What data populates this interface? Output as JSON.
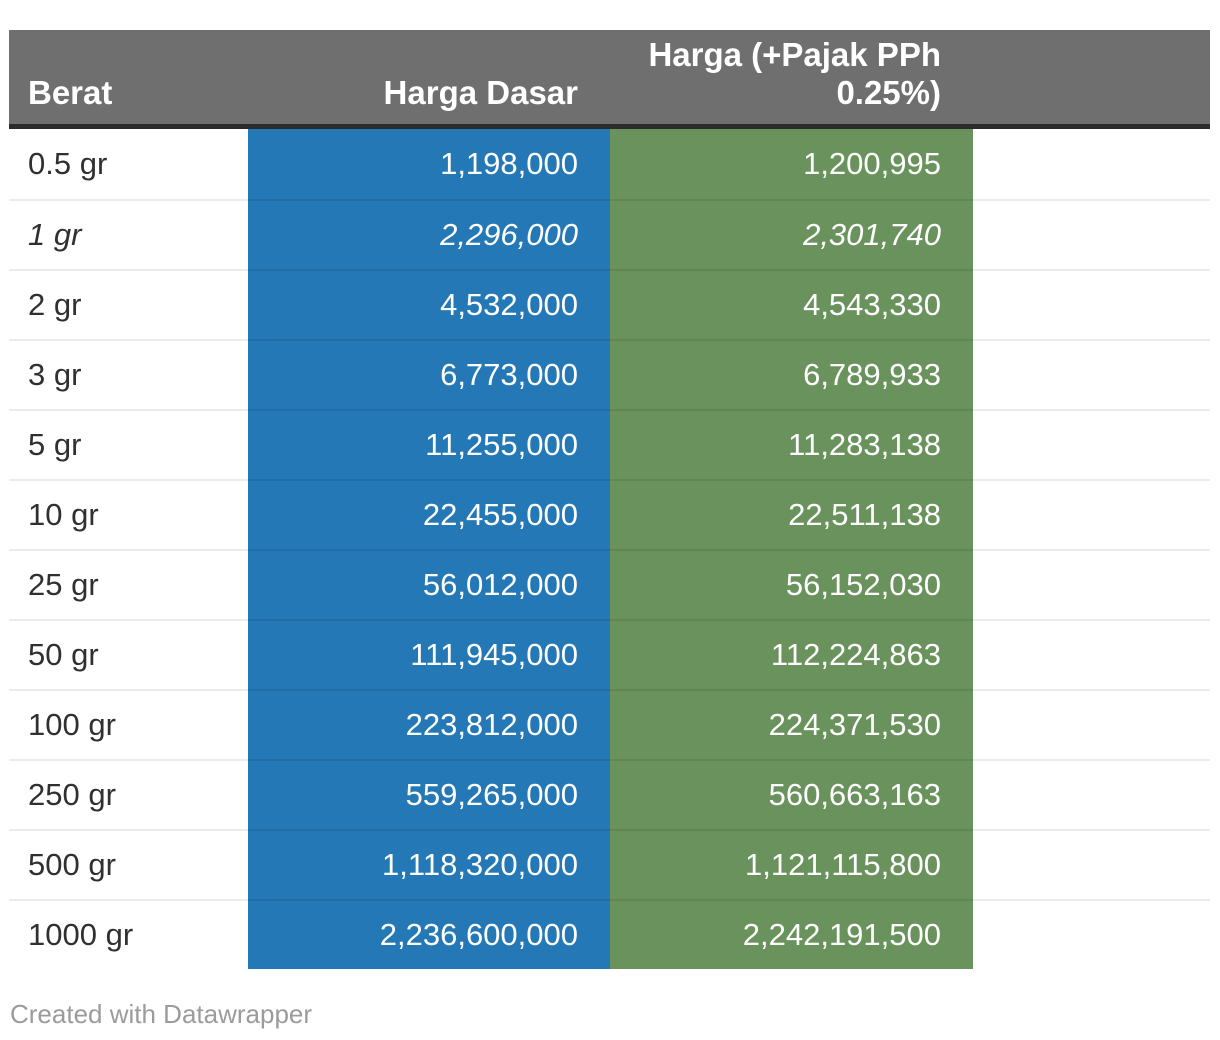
{
  "table": {
    "columns": [
      {
        "key": "berat",
        "label": "Berat",
        "align": "left"
      },
      {
        "key": "harga_dasar",
        "label": "Harga Dasar",
        "align": "right"
      },
      {
        "key": "harga_pajak",
        "label": "Harga (+Pajak PPh 0.25%)",
        "align": "right"
      }
    ],
    "rows": [
      {
        "berat": "0.5 gr",
        "harga_dasar": "1,198,000",
        "harga_pajak": "1,200,995",
        "italic": false
      },
      {
        "berat": "1 gr",
        "harga_dasar": "2,296,000",
        "harga_pajak": "2,301,740",
        "italic": true
      },
      {
        "berat": "2 gr",
        "harga_dasar": "4,532,000",
        "harga_pajak": "4,543,330",
        "italic": false
      },
      {
        "berat": "3 gr",
        "harga_dasar": "6,773,000",
        "harga_pajak": "6,789,933",
        "italic": false
      },
      {
        "berat": "5 gr",
        "harga_dasar": "11,255,000",
        "harga_pajak": "11,283,138",
        "italic": false
      },
      {
        "berat": "10 gr",
        "harga_dasar": "22,455,000",
        "harga_pajak": "22,511,138",
        "italic": false
      },
      {
        "berat": "25 gr",
        "harga_dasar": "56,012,000",
        "harga_pajak": "56,152,030",
        "italic": false
      },
      {
        "berat": "50 gr",
        "harga_dasar": "111,945,000",
        "harga_pajak": "112,224,863",
        "italic": false
      },
      {
        "berat": "100 gr",
        "harga_dasar": "223,812,000",
        "harga_pajak": "224,371,530",
        "italic": false
      },
      {
        "berat": "250 gr",
        "harga_dasar": "559,265,000",
        "harga_pajak": "560,663,163",
        "italic": false
      },
      {
        "berat": "500 gr",
        "harga_dasar": "1,118,320,000",
        "harga_pajak": "1,121,115,800",
        "italic": false
      },
      {
        "berat": "1000 gr",
        "harga_dasar": "2,236,600,000",
        "harga_pajak": "2,242,191,500",
        "italic": false
      }
    ]
  },
  "footer": {
    "attribution": "Created with Datawrapper"
  },
  "colors": {
    "header_bg": "#6F6F6F",
    "header_border": "#2B2B2B",
    "harga_dasar_bg": "#2478B5",
    "harga_pajak_bg": "#6A925C",
    "label_text": "#303030",
    "attribution_text": "#9B9B9B"
  },
  "chart_data": {
    "type": "table",
    "title": "",
    "categories": [
      "0.5 gr",
      "1 gr",
      "2 gr",
      "3 gr",
      "5 gr",
      "10 gr",
      "25 gr",
      "50 gr",
      "100 gr",
      "250 gr",
      "500 gr",
      "1000 gr"
    ],
    "series": [
      {
        "name": "Harga Dasar",
        "values": [
          1198000,
          2296000,
          4532000,
          6773000,
          11255000,
          22455000,
          56012000,
          111945000,
          223812000,
          559265000,
          1118320000,
          2236600000
        ]
      },
      {
        "name": "Harga (+Pajak PPh 0.25%)",
        "values": [
          1200995,
          2301740,
          4543330,
          6789933,
          11283138,
          22511138,
          56152030,
          112224863,
          224371530,
          560663163,
          1121115800,
          2242191500
        ]
      }
    ],
    "column_header": "Berat",
    "legend_position": "none",
    "grid": "horizontal-row-separators",
    "highlighted_row_italic": "1 gr",
    "attribution": "Created with Datawrapper"
  }
}
